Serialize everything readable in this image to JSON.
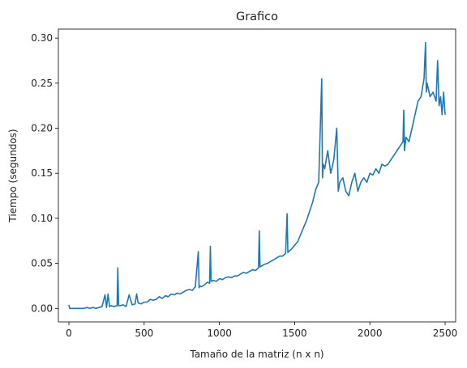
{
  "chart_data": {
    "type": "line",
    "title": "Grafico",
    "xlabel": "Tamaño de la matriz (n x n)",
    "ylabel": "Tiempo (segundos)",
    "xlim": [
      -70,
      2570
    ],
    "ylim": [
      -0.015,
      0.31
    ],
    "x_ticks": [
      0,
      500,
      1000,
      1500,
      2000,
      2500
    ],
    "y_ticks": [
      0.0,
      0.05,
      0.1,
      0.15,
      0.2,
      0.25,
      0.3
    ],
    "x_tick_labels": [
      "0",
      "500",
      "1000",
      "1500",
      "2000",
      "2500"
    ],
    "y_tick_labels": [
      "0.00",
      "0.05",
      "0.10",
      "0.15",
      "0.20",
      "0.25",
      "0.30"
    ],
    "grid": false,
    "legend": "none",
    "series": [
      {
        "color": "#1f77b4",
        "x": [
          0,
          5,
          10,
          20,
          40,
          60,
          80,
          100,
          120,
          140,
          160,
          180,
          200,
          220,
          240,
          250,
          260,
          270,
          280,
          300,
          320,
          325,
          330,
          340,
          360,
          380,
          400,
          420,
          440,
          450,
          460,
          480,
          500,
          520,
          540,
          560,
          580,
          600,
          620,
          640,
          660,
          680,
          700,
          720,
          740,
          760,
          780,
          800,
          820,
          840,
          860,
          865,
          870,
          880,
          900,
          920,
          935,
          940,
          945,
          960,
          980,
          1000,
          1020,
          1040,
          1060,
          1080,
          1100,
          1120,
          1140,
          1160,
          1180,
          1200,
          1220,
          1240,
          1260,
          1265,
          1270,
          1280,
          1300,
          1320,
          1340,
          1360,
          1380,
          1400,
          1420,
          1440,
          1450,
          1455,
          1460,
          1480,
          1500,
          1520,
          1540,
          1560,
          1580,
          1600,
          1620,
          1640,
          1660,
          1680,
          1685,
          1690,
          1700,
          1720,
          1740,
          1760,
          1780,
          1790,
          1800,
          1820,
          1840,
          1860,
          1880,
          1900,
          1920,
          1940,
          1960,
          1980,
          2000,
          2020,
          2040,
          2060,
          2080,
          2100,
          2120,
          2140,
          2160,
          2180,
          2200,
          2220,
          2225,
          2230,
          2240,
          2260,
          2280,
          2300,
          2320,
          2340,
          2360,
          2370,
          2375,
          2380,
          2400,
          2420,
          2440,
          2450,
          2460,
          2470,
          2480,
          2490,
          2500
        ],
        "y": [
          0.004,
          0.0,
          0.0,
          0.0,
          0.0,
          0.0,
          0.0,
          0.0,
          0.001,
          0.0,
          0.001,
          0.0,
          0.001,
          0.002,
          0.015,
          0.001,
          0.016,
          0.002,
          0.003,
          0.002,
          0.003,
          0.045,
          0.003,
          0.003,
          0.004,
          0.002,
          0.015,
          0.004,
          0.005,
          0.016,
          0.006,
          0.005,
          0.007,
          0.007,
          0.01,
          0.009,
          0.01,
          0.013,
          0.011,
          0.014,
          0.013,
          0.016,
          0.015,
          0.017,
          0.016,
          0.018,
          0.02,
          0.021,
          0.02,
          0.024,
          0.063,
          0.023,
          0.025,
          0.024,
          0.026,
          0.029,
          0.028,
          0.069,
          0.03,
          0.031,
          0.03,
          0.033,
          0.032,
          0.034,
          0.035,
          0.034,
          0.036,
          0.036,
          0.038,
          0.04,
          0.039,
          0.041,
          0.043,
          0.042,
          0.045,
          0.086,
          0.046,
          0.047,
          0.049,
          0.05,
          0.052,
          0.054,
          0.056,
          0.058,
          0.058,
          0.061,
          0.105,
          0.062,
          0.063,
          0.066,
          0.07,
          0.074,
          0.082,
          0.09,
          0.098,
          0.108,
          0.118,
          0.132,
          0.14,
          0.255,
          0.145,
          0.16,
          0.155,
          0.175,
          0.15,
          0.165,
          0.2,
          0.13,
          0.14,
          0.145,
          0.13,
          0.125,
          0.14,
          0.15,
          0.13,
          0.14,
          0.145,
          0.14,
          0.15,
          0.148,
          0.155,
          0.15,
          0.16,
          0.158,
          0.16,
          0.165,
          0.17,
          0.175,
          0.18,
          0.185,
          0.22,
          0.175,
          0.19,
          0.185,
          0.2,
          0.215,
          0.23,
          0.235,
          0.255,
          0.295,
          0.24,
          0.25,
          0.235,
          0.24,
          0.23,
          0.275,
          0.225,
          0.235,
          0.215,
          0.24,
          0.215
        ]
      }
    ]
  }
}
